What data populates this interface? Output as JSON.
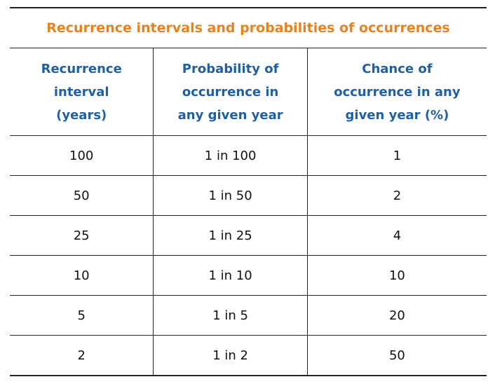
{
  "table": {
    "title": "Recurrence intervals and probabilities of occurrences",
    "headers": [
      [
        "Recurrence",
        "interval",
        "(years)"
      ],
      [
        "Probability of",
        "occurrence in",
        "any given year"
      ],
      [
        "Chance of",
        "occurrence in any",
        "given year (%)"
      ]
    ],
    "rows": [
      [
        "100",
        "1 in 100",
        "1"
      ],
      [
        "50",
        "1 in 50",
        "2"
      ],
      [
        "25",
        "1 in 25",
        "4"
      ],
      [
        "10",
        "1 in 10",
        "10"
      ],
      [
        "5",
        "1 in 5",
        "20"
      ],
      [
        "2",
        "1 in 2",
        "50"
      ]
    ],
    "colors": {
      "title": "#e8821e",
      "header": "#1f5fa3"
    }
  }
}
